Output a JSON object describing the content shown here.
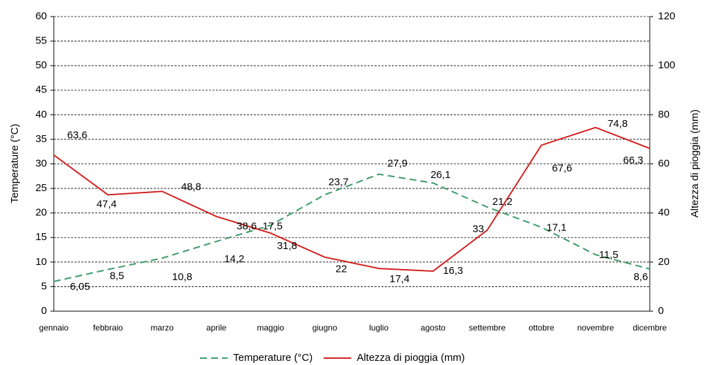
{
  "chart_data": {
    "type": "line",
    "y_label": "Temperature (°C)",
    "y2_label": "Altezza di pioggia (mm)",
    "categories": [
      "gennaio",
      "febbraio",
      "marzo",
      "aprile",
      "maggio",
      "giugno",
      "luglio",
      "agosto",
      "settembre",
      "ottobre",
      "novembre",
      "dicembre"
    ],
    "series": [
      {
        "name": "Temperature (°C)",
        "color": "#3a9a66",
        "dash": true,
        "axis": "y",
        "values": [
          6.05,
          8.5,
          10.8,
          14.2,
          17.5,
          23.7,
          27.9,
          26.1,
          21.2,
          17.1,
          11.5,
          8.6
        ],
        "value_labels": [
          "6,05",
          "8,5",
          "10,8",
          "14,2",
          "17,5",
          "23,7",
          "27,9",
          "26,1",
          "21,2",
          "17,1",
          "11,5",
          "8,6"
        ]
      },
      {
        "name": "Altezza di pioggia (mm)",
        "color": "#d42020",
        "dash": false,
        "axis": "y2",
        "values": [
          63.6,
          47.4,
          48.8,
          38.6,
          31.8,
          22,
          17.4,
          16.3,
          33,
          67.6,
          74.8,
          66.3
        ],
        "value_labels": [
          "63,6",
          "47,4",
          "48,8",
          "38,6",
          "31,8",
          "22",
          "17,4",
          "16,3",
          "33",
          "67,6",
          "74,8",
          "66,3"
        ]
      }
    ],
    "ylim": [
      0,
      60
    ],
    "yticks": [
      0,
      5,
      10,
      15,
      20,
      25,
      30,
      35,
      40,
      45,
      50,
      55,
      60
    ],
    "y2lim": [
      0,
      120
    ],
    "y2ticks": [
      0,
      20,
      40,
      60,
      80,
      100,
      120
    ],
    "grid": true,
    "legend": "bottom"
  }
}
